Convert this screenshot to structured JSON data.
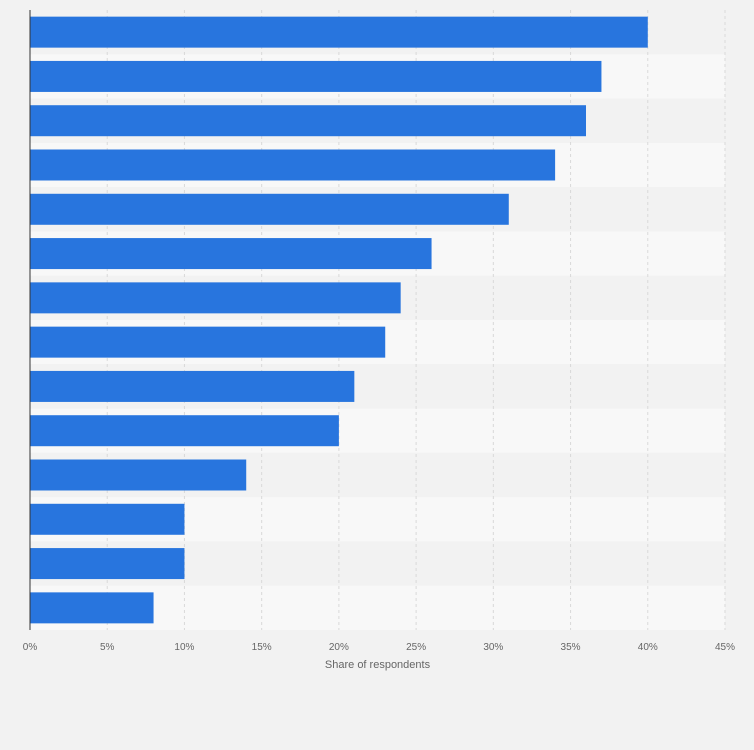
{
  "chart_data": {
    "type": "bar",
    "orientation": "horizontal",
    "title": "",
    "xlabel": "Share of respondents",
    "ylabel": "",
    "xlim": [
      0,
      45
    ],
    "ticks": [
      0,
      5,
      10,
      15,
      20,
      25,
      30,
      35,
      40,
      45
    ],
    "tick_labels": [
      "0%",
      "5%",
      "10%",
      "15%",
      "20%",
      "25%",
      "30%",
      "35%",
      "40%",
      "45%"
    ],
    "categories": [
      "",
      "",
      "",
      "",
      "",
      "",
      "",
      "",
      "",
      "",
      "",
      "",
      "",
      ""
    ],
    "values": [
      40,
      37,
      36,
      34,
      31,
      26,
      24,
      23,
      21,
      20,
      14,
      10,
      10,
      8
    ],
    "bar_color": "#2875de",
    "grid": true
  }
}
